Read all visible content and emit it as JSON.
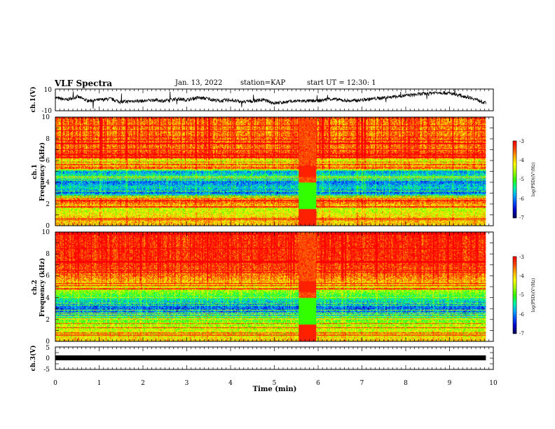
{
  "header": {
    "title": "VLF Spectra",
    "date": "Jan. 13, 2022",
    "station": "station=KAP",
    "start": "start UT = 12:30: 1"
  },
  "colors": {
    "background": "#ffffff",
    "axis": "#000000",
    "trace": "#000000",
    "colormap": [
      "#000050",
      "#0000c8",
      "#0050ff",
      "#00b4ff",
      "#00ff96",
      "#32ff00",
      "#aaff00",
      "#ffff00",
      "#ffaa00",
      "#ff4000",
      "#ff0000"
    ]
  },
  "chart_data": [
    {
      "type": "line",
      "name": "ch1-waveform",
      "ylabel": "ch.1(V)",
      "ytick_labels": [
        "10",
        "-10"
      ],
      "ylim": [
        -10,
        10
      ],
      "xlim": [
        0,
        9.83
      ],
      "series": [
        {
          "x": [
            0,
            0.25,
            0.5,
            0.75,
            1,
            1.25,
            1.5,
            1.75,
            2,
            2.25,
            2.5,
            2.75,
            3,
            3.25,
            3.5,
            3.75,
            4,
            4.25,
            4.5,
            4.75,
            5,
            5.25,
            5.5,
            5.75,
            6,
            6.25,
            6.5,
            6.75,
            7,
            7.25,
            7.5,
            7.75,
            8,
            8.25,
            8.5,
            8.75,
            9,
            9.25,
            9.5,
            9.83
          ],
          "y": [
            2,
            0,
            3,
            -1,
            0,
            1,
            -2,
            -1,
            -1,
            0,
            -1,
            1,
            0,
            2,
            1,
            -1,
            0,
            -2,
            -1,
            0,
            -3,
            -2,
            -1,
            -1,
            -1,
            1,
            0,
            -1,
            0,
            1,
            2,
            3,
            4,
            5,
            6,
            7,
            6,
            4,
            2,
            -3
          ]
        }
      ]
    },
    {
      "type": "heatmap",
      "name": "ch1-spectrogram",
      "ylabel": "ch.1\nFrequency (kHz)",
      "ylim": [
        0,
        10
      ],
      "xlim": [
        0,
        9.83
      ],
      "ytick_labels": [
        "0",
        "2",
        "4",
        "6",
        "8",
        "10"
      ],
      "colorbar": {
        "label": "log(PSD)(V²/Hz)",
        "range": [
          -7,
          -3
        ],
        "tick_labels": [
          "-3",
          "-4",
          "-5",
          "-6",
          "-7"
        ]
      },
      "frequency_profile_khz": [
        [
          0,
          -4.0
        ],
        [
          0.5,
          -4.0
        ],
        [
          1.5,
          -4.5
        ],
        [
          2.3,
          -3.3
        ],
        [
          2.6,
          -4.7
        ],
        [
          3.0,
          -6.2
        ],
        [
          3.5,
          -5.6
        ],
        [
          4.0,
          -6.1
        ],
        [
          4.5,
          -5.3
        ],
        [
          5.0,
          -6.0
        ],
        [
          5.3,
          -3.3
        ],
        [
          5.6,
          -4.3
        ],
        [
          6.0,
          -4.4
        ],
        [
          6.5,
          -3.2
        ],
        [
          7.0,
          -3.6
        ],
        [
          8.0,
          -3.6
        ],
        [
          9.0,
          -3.7
        ],
        [
          10,
          -3.6
        ]
      ],
      "disturbance_minutes": [
        5.55,
        5.95
      ]
    },
    {
      "type": "heatmap",
      "name": "ch2-spectrogram",
      "ylabel": "ch.2\nFrequency (kHz)",
      "ylim": [
        0,
        10
      ],
      "xlim": [
        0,
        9.83
      ],
      "ytick_labels": [
        "0",
        "2",
        "4",
        "6",
        "8",
        "10"
      ],
      "colorbar": {
        "label": "log(PSD)(V²/Hz)",
        "range": [
          -7,
          -3
        ],
        "tick_labels": [
          "-3",
          "-4",
          "-5",
          "-6",
          "-7"
        ]
      },
      "frequency_profile_khz": [
        [
          0,
          -4.0
        ],
        [
          0.5,
          -4.3
        ],
        [
          1.5,
          -4.6
        ],
        [
          2.0,
          -5.0
        ],
        [
          2.5,
          -5.9
        ],
        [
          3.0,
          -6.2
        ],
        [
          3.5,
          -5.8
        ],
        [
          4.0,
          -5.2
        ],
        [
          4.5,
          -4.8
        ],
        [
          5.0,
          -4.2
        ],
        [
          6.0,
          -3.6
        ],
        [
          7.0,
          -3.3
        ],
        [
          8.0,
          -3.2
        ],
        [
          9.0,
          -3.2
        ],
        [
          10,
          -3.1
        ]
      ],
      "disturbance_minutes": [
        5.55,
        5.95
      ]
    },
    {
      "type": "line",
      "name": "ch3-signal",
      "ylabel": "ch.3(V)",
      "ytick_labels": [
        "5",
        "0",
        "-5"
      ],
      "ylim": [
        -5,
        5
      ],
      "xlim": [
        0,
        9.83
      ],
      "series": [
        {
          "x": [
            0,
            9.83
          ],
          "y": [
            0,
            0
          ]
        }
      ]
    }
  ],
  "xaxis": {
    "label": "Time (min)",
    "tick_labels": [
      "0",
      "1",
      "2",
      "3",
      "4",
      "5",
      "6",
      "7",
      "8",
      "9",
      "10"
    ],
    "range": [
      0,
      10
    ]
  }
}
